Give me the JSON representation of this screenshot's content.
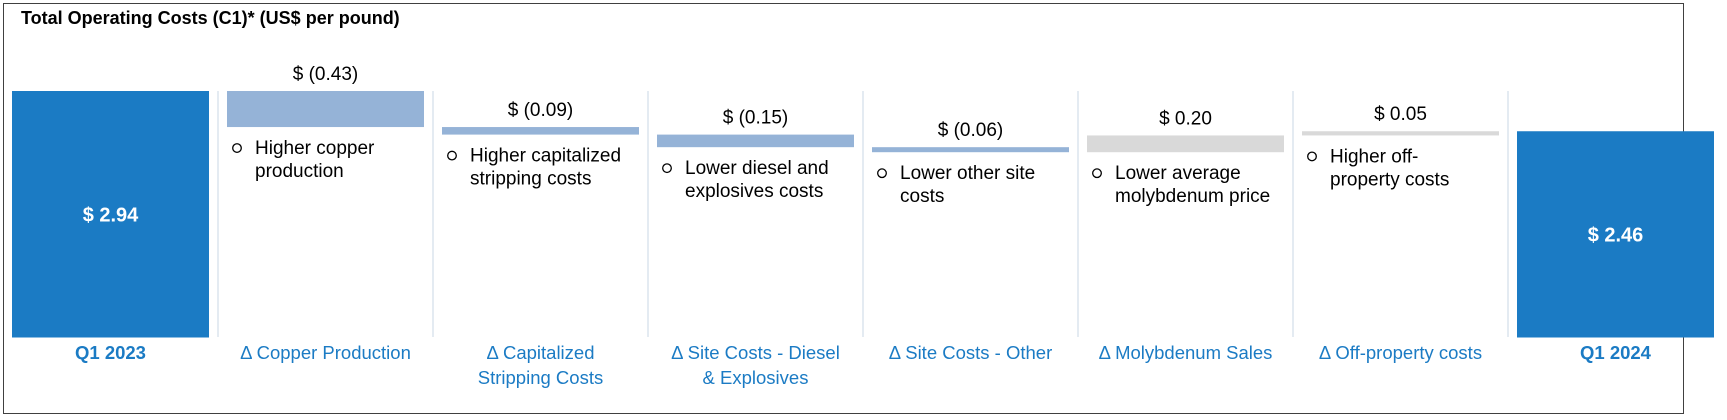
{
  "chart_data": {
    "type": "bar",
    "subtype": "waterfall",
    "title": "Total Operating Costs (C1)* (US$ per pound)",
    "colors": {
      "total": "#1b7bc4",
      "decrease": "#95b3d7",
      "increase": "#d9d9d9",
      "category_text": "#1b7bc4"
    },
    "categories": [
      "Q1 2023",
      "Δ Copper Production",
      "Δ Capitalized Stripping Costs",
      "Δ Site Costs - Diesel & Explosives",
      "Δ Site Costs - Other",
      "Δ Molybdenum Sales",
      "Δ Off-property costs",
      "Q1 2024"
    ],
    "category_lines": [
      [
        "Q1 2023"
      ],
      [
        "Δ Copper Production"
      ],
      [
        "Δ Capitalized",
        "Stripping Costs"
      ],
      [
        "Δ Site Costs - Diesel",
        "& Explosives"
      ],
      [
        "Δ Site Costs - Other"
      ],
      [
        "Δ Molybdenum Sales"
      ],
      [
        "Δ Off-property costs"
      ],
      [
        "Q1 2024"
      ]
    ],
    "values": [
      2.94,
      -0.43,
      -0.09,
      -0.15,
      -0.06,
      0.2,
      0.05,
      2.46
    ],
    "kinds": [
      "total",
      "delta",
      "delta",
      "delta",
      "delta",
      "delta",
      "delta",
      "total"
    ],
    "value_labels": [
      "$ 2.94",
      "$ (0.43)",
      "$ (0.09)",
      "$ (0.15)",
      "$ (0.06)",
      "$ 0.20",
      "$ 0.05",
      "$ 2.46"
    ],
    "annotations": [
      [],
      [
        "Higher copper",
        "production"
      ],
      [
        "Higher capitalized",
        "stripping costs"
      ],
      [
        "Lower diesel and",
        "explosives costs"
      ],
      [
        "Lower other site",
        "costs"
      ],
      [
        "Lower average",
        "molybdenum price"
      ],
      [
        "Higher off-",
        "property costs"
      ],
      []
    ],
    "ylim": [
      0,
      2.94
    ],
    "grid": false,
    "legend": "none"
  }
}
